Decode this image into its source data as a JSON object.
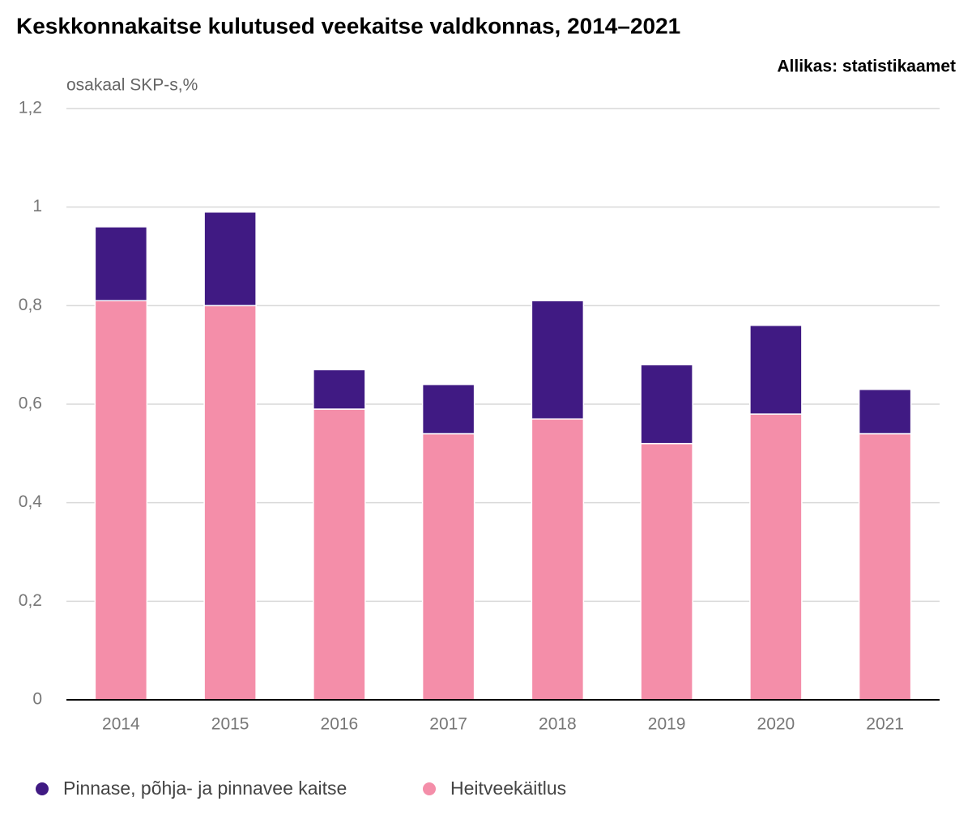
{
  "chart_data": {
    "type": "stacked_bar",
    "title": "Keskkonnakaitse kulutused veekaitse valdkonnas, 2014–2021",
    "source": "Allikas: statistikaamet",
    "y_label": "osakaal SKP-s,%",
    "categories": [
      "2014",
      "2015",
      "2016",
      "2017",
      "2018",
      "2019",
      "2020",
      "2021"
    ],
    "series": [
      {
        "name": "Pinnase, põhja- ja pinnavee kaitse",
        "color": "#401a83",
        "values": [
          0.15,
          0.19,
          0.08,
          0.1,
          0.24,
          0.16,
          0.18,
          0.09
        ]
      },
      {
        "name": "Heitveekäitlus",
        "color": "#f48ea9",
        "values": [
          0.81,
          0.8,
          0.59,
          0.54,
          0.57,
          0.52,
          0.58,
          0.54
        ]
      }
    ],
    "ylim": [
      0,
      1.2
    ],
    "yticks": [
      0,
      {
        "value": 0.2,
        "label": "0,2"
      },
      {
        "value": 0.4,
        "label": "0,4"
      },
      {
        "value": 0.6,
        "label": "0,6"
      },
      {
        "value": 0.8,
        "label": "0,8"
      },
      1,
      {
        "value": 1.2,
        "label": "1,2"
      }
    ],
    "grid": true
  }
}
